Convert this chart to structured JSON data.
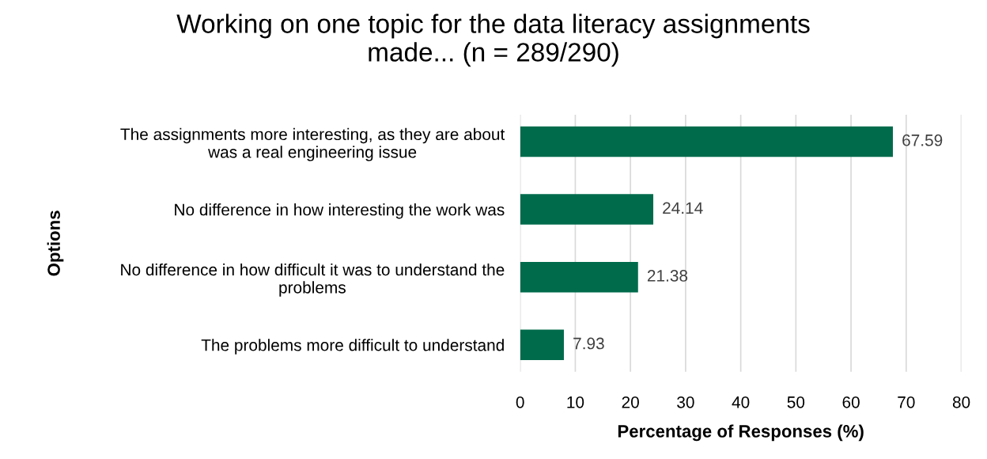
{
  "chart_data": {
    "type": "bar",
    "orientation": "horizontal",
    "title": "Working on one topic for the data literacy assignments\nmade... (n = 289/290)",
    "xlabel": "Percentage of Responses (%)",
    "ylabel": "Options",
    "categories": [
      "The assignments more interesting, as they are about\nwas a real engineering issue",
      "No difference in how interesting the work was",
      "No difference in how difficult it was to understand the\nproblems",
      "The problems more difficult to understand"
    ],
    "values": [
      67.59,
      24.14,
      21.38,
      7.93
    ],
    "color": "#006b4b",
    "xlim": [
      0,
      80
    ],
    "xticks": [
      0,
      10,
      20,
      30,
      40,
      50,
      60,
      70,
      80
    ],
    "grid": "x",
    "data_labels": true,
    "legend": false
  }
}
